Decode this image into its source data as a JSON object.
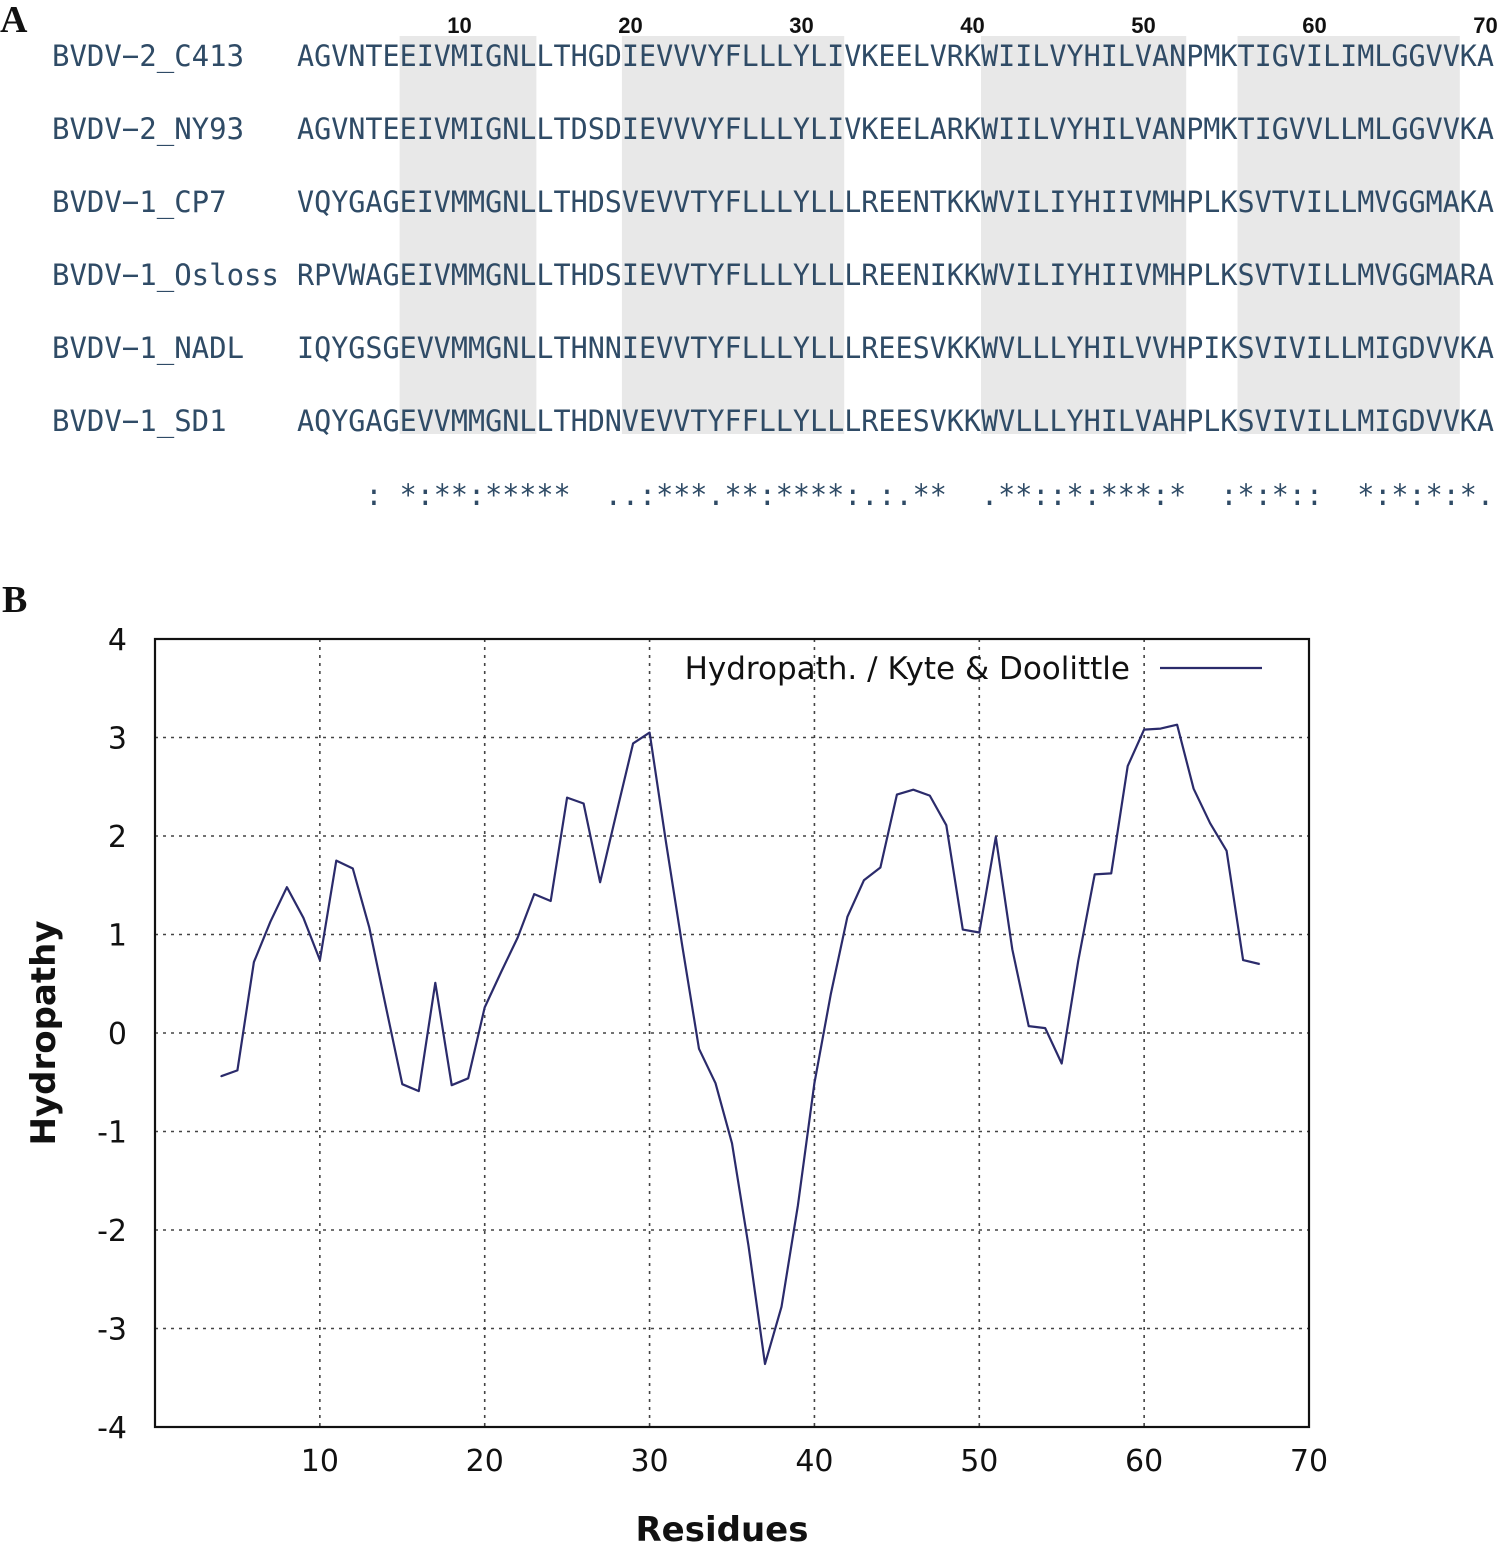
{
  "panel_a": {
    "label": "A",
    "ruler": [
      "10",
      "20",
      "30",
      "40",
      "50",
      "60",
      "70"
    ],
    "sequences": [
      {
        "name": "BVDV−2_C413",
        "seq": "AGVNTEEIVMIGNLLTHGDIEVVVYFLLLYLIVKEELVRKWIILVYHILVANPMKTIGVILIMLGGVVKA"
      },
      {
        "name": "BVDV−2_NY93",
        "seq": "AGVNTEEIVMIGNLLTDSDIEVVVYFLLLYLIVKEELARKWIILVYHILVANPMKTIGVVLLMLGGVVKA"
      },
      {
        "name": "BVDV−1_CP7",
        "seq": "VQYGAGEIVMMGNLLTHDSVEVVTYFLLLYLLLREENTKKWVILIYHIIVMHPLKSVTVILLMVGGMAKA"
      },
      {
        "name": "BVDV−1_Osloss",
        "seq": "RPVWAGEIVMMGNLLTHDSIEVVTYFLLLYLLLREENIKKWVILIYHIIVMHPLKSVTVILLMVGGMARA"
      },
      {
        "name": "BVDV−1_NADL",
        "seq": "IQYGSGEVVMMGNLLTHNNIEVVTYFLLLYLLLREESVKKWVLLLYHILVVHPIKSVIVILLMIGDVVKA"
      },
      {
        "name": "BVDV−1_SD1",
        "seq": "AQYGAGEVVMMGNLLTHDNVEVVTYFFLLYLLLREESVKKWVLLLYHILVAHPLKSVIVILLMIGDVVKA"
      }
    ],
    "consensus": "    : *:**:*****  ..:***.**:****:.:.**  .**::*:***:*  :*:*::  *:*:*:*.:..*",
    "shaded_blocks": [
      [
        7,
        14
      ],
      [
        20,
        32
      ],
      [
        41,
        52
      ],
      [
        56,
        68
      ]
    ]
  },
  "panel_b": {
    "label": "B"
  },
  "chart_data": {
    "type": "line",
    "xlabel": "Residues",
    "ylabel": "Hydropathy",
    "xlim": [
      0,
      70
    ],
    "ylim": [
      -4,
      4
    ],
    "xticks": [
      10,
      20,
      30,
      40,
      50,
      60,
      70
    ],
    "yticks": [
      -4,
      -3,
      -2,
      -1,
      0,
      1,
      2,
      3,
      4
    ],
    "grid": true,
    "legend_position": "top-right",
    "series_color": "#2b2b6b",
    "series": [
      {
        "name": "Hydropath. / Kyte & Doolittle",
        "x": [
          4,
          5,
          6,
          7,
          8,
          9,
          10,
          11,
          12,
          13,
          14,
          15,
          16,
          17,
          18,
          19,
          20,
          21,
          22,
          23,
          24,
          25,
          26,
          27,
          28,
          29,
          30,
          31,
          32,
          33,
          34,
          35,
          36,
          37,
          38,
          39,
          40,
          41,
          42,
          43,
          44,
          45,
          46,
          47,
          48,
          49,
          50,
          51,
          52,
          53,
          54,
          55,
          56,
          57,
          58,
          59,
          60,
          61,
          62,
          63,
          64,
          65,
          66,
          67
        ],
        "values": [
          -0.44,
          -0.38,
          0.72,
          1.13,
          1.48,
          1.17,
          0.74,
          1.75,
          1.67,
          1.07,
          0.27,
          -0.52,
          -0.59,
          0.51,
          -0.53,
          -0.46,
          0.26,
          0.62,
          0.97,
          1.41,
          1.34,
          2.39,
          2.33,
          1.53,
          2.24,
          2.94,
          3.05,
          1.93,
          0.87,
          -0.16,
          -0.51,
          -1.12,
          -2.16,
          -3.36,
          -2.78,
          -1.75,
          -0.51,
          0.4,
          1.18,
          1.55,
          1.68,
          2.42,
          2.47,
          2.41,
          2.11,
          1.05,
          1.02,
          1.99,
          0.85,
          0.07,
          0.05,
          -0.31,
          0.73,
          1.61,
          1.62,
          2.71,
          3.08,
          3.09,
          3.13,
          2.48,
          2.13,
          1.85,
          0.74,
          0.7
        ]
      }
    ]
  }
}
